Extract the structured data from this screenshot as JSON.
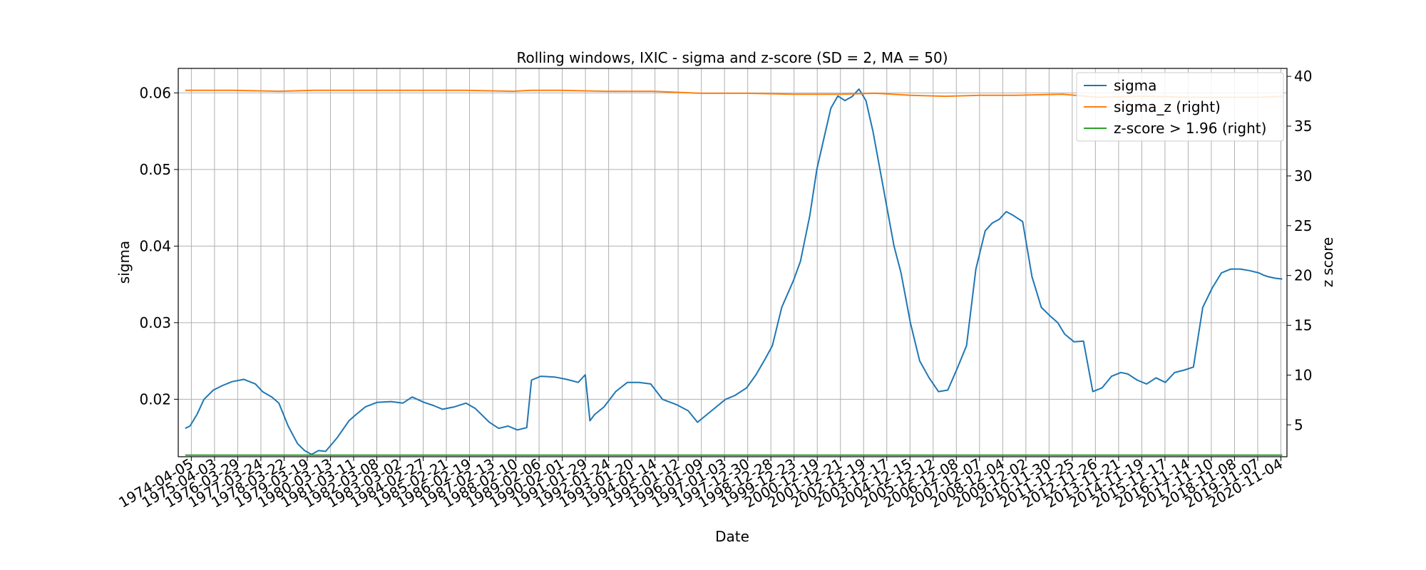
{
  "chart_data": {
    "type": "line",
    "title": "Rolling windows, IXIC - sigma and z-score (SD = 2, MA = 50)",
    "xlabel": "Date",
    "ylabel": "sigma",
    "ylabel_right": "z score",
    "grid": true,
    "legend_position": "top-right",
    "ylim": [
      0.0125,
      0.0632
    ],
    "ylim_right": [
      1.8,
      40.8
    ],
    "yticks": [
      "0.02",
      "0.03",
      "0.04",
      "0.05",
      "0.06"
    ],
    "yticks_right": [
      "5",
      "10",
      "15",
      "20",
      "25",
      "30",
      "35",
      "40"
    ],
    "x_tick_labels": [
      "1974-04-05",
      "1975-04-03",
      "1976-03-29",
      "1977-03-24",
      "1978-03-22",
      "1979-03-19",
      "1980-03-13",
      "1981-03-11",
      "1982-03-08",
      "1983-03-02",
      "1984-02-27",
      "1985-02-21",
      "1986-02-19",
      "1987-02-13",
      "1988-02-10",
      "1989-02-06",
      "1990-02-01",
      "1991-01-29",
      "1992-01-24",
      "1993-01-20",
      "1994-01-14",
      "1995-01-12",
      "1996-01-09",
      "1997-01-03",
      "1997-12-30",
      "1998-12-28",
      "1999-12-23",
      "2000-12-19",
      "2001-12-21",
      "2002-12-19",
      "2003-12-17",
      "2004-12-15",
      "2005-12-12",
      "2006-12-08",
      "2007-12-07",
      "2008-12-04",
      "2009-12-02",
      "2010-11-30",
      "2011-11-25",
      "2012-11-26",
      "2013-11-21",
      "2014-11-19",
      "2015-11-17",
      "2016-11-14",
      "2017-11-10",
      "2018-11-08",
      "2019-11-07",
      "2020-11-04"
    ],
    "series": [
      {
        "name": "sigma",
        "axis": "left",
        "color": "#1f77b4",
        "x": [
          1974.0,
          1974.2,
          1974.5,
          1974.8,
          1975.2,
          1975.6,
          1976.0,
          1976.5,
          1977.0,
          1977.3,
          1977.7,
          1978.0,
          1978.4,
          1978.8,
          1979.1,
          1979.4,
          1979.7,
          1980.0,
          1980.5,
          1981.0,
          1981.3,
          1981.7,
          1982.2,
          1982.8,
          1983.3,
          1983.7,
          1984.2,
          1984.6,
          1985.0,
          1985.5,
          1986.0,
          1986.4,
          1987.0,
          1987.4,
          1987.8,
          1988.2,
          1988.6,
          1988.8,
          1989.2,
          1989.8,
          1990.3,
          1990.8,
          1991.1,
          1991.3,
          1991.5,
          1991.9,
          1992.4,
          1992.9,
          1993.4,
          1993.9,
          1994.4,
          1995.0,
          1995.5,
          1995.9,
          1996.3,
          1996.7,
          1997.1,
          1997.5,
          1998.0,
          1998.4,
          1998.8,
          1999.1,
          1999.5,
          2000.0,
          2000.3,
          2000.7,
          2001.0,
          2001.3,
          2001.6,
          2001.9,
          2002.2,
          2002.5,
          2002.8,
          2003.1,
          2003.4,
          2003.7,
          2004.0,
          2004.3,
          2004.6,
          2005.0,
          2005.4,
          2005.8,
          2006.2,
          2006.6,
          2007.0,
          2007.4,
          2007.8,
          2008.2,
          2008.5,
          2008.8,
          2009.1,
          2009.4,
          2009.8,
          2010.2,
          2010.6,
          2011.0,
          2011.3,
          2011.6,
          2012.0,
          2012.4,
          2012.8,
          2013.2,
          2013.6,
          2014.0,
          2014.3,
          2014.7,
          2015.1,
          2015.5,
          2015.9,
          2016.3,
          2016.7,
          2017.1,
          2017.5,
          2017.9,
          2018.3,
          2018.7,
          2019.1,
          2019.5,
          2019.9,
          2020.1,
          2020.3,
          2020.6,
          2020.9
        ],
        "values": [
          0.0162,
          0.0165,
          0.018,
          0.02,
          0.0212,
          0.0218,
          0.0223,
          0.0226,
          0.022,
          0.021,
          0.0203,
          0.0195,
          0.0165,
          0.0142,
          0.0133,
          0.0128,
          0.0133,
          0.0132,
          0.015,
          0.0172,
          0.018,
          0.019,
          0.0196,
          0.0197,
          0.0195,
          0.0203,
          0.0196,
          0.0192,
          0.0187,
          0.019,
          0.0195,
          0.0188,
          0.017,
          0.0162,
          0.0165,
          0.016,
          0.0163,
          0.0225,
          0.023,
          0.0229,
          0.0226,
          0.0222,
          0.0232,
          0.0172,
          0.018,
          0.019,
          0.021,
          0.0222,
          0.0222,
          0.022,
          0.02,
          0.0193,
          0.0185,
          0.017,
          0.018,
          0.019,
          0.02,
          0.0205,
          0.0215,
          0.0232,
          0.0253,
          0.027,
          0.032,
          0.0355,
          0.038,
          0.044,
          0.05,
          0.054,
          0.058,
          0.0596,
          0.059,
          0.0595,
          0.0605,
          0.059,
          0.055,
          0.05,
          0.045,
          0.04,
          0.0365,
          0.03,
          0.025,
          0.0228,
          0.021,
          0.0212,
          0.024,
          0.027,
          0.037,
          0.042,
          0.043,
          0.0435,
          0.0445,
          0.044,
          0.0432,
          0.036,
          0.032,
          0.0308,
          0.03,
          0.0285,
          0.0275,
          0.0276,
          0.021,
          0.0215,
          0.023,
          0.0235,
          0.0233,
          0.0225,
          0.022,
          0.0228,
          0.0222,
          0.0235,
          0.0238,
          0.0242,
          0.032,
          0.0345,
          0.0365,
          0.037,
          0.037,
          0.0368,
          0.0365,
          0.0362,
          0.036,
          0.0358,
          0.0357
        ]
      },
      {
        "name": "sigma_z (right)",
        "axis": "right",
        "color": "#ff7f0e",
        "x": [
          1974.0,
          1976.0,
          1978.0,
          1979.5,
          1980.0,
          1982.0,
          1984.0,
          1986.0,
          1988.0,
          1988.8,
          1990.0,
          1992.0,
          1994.0,
          1996.0,
          1998.0,
          2000.0,
          2002.0,
          2003.5,
          2005.0,
          2006.5,
          2008.0,
          2009.5,
          2011.5,
          2013.0,
          2015.0,
          2016.8,
          2018.5,
          2020.0,
          2020.9
        ],
        "values": [
          38.6,
          38.6,
          38.5,
          38.6,
          38.6,
          38.6,
          38.6,
          38.6,
          38.5,
          38.6,
          38.6,
          38.5,
          38.5,
          38.3,
          38.3,
          38.2,
          38.2,
          38.3,
          38.1,
          38.0,
          38.1,
          38.1,
          38.2,
          37.9,
          38.0,
          37.9,
          37.9,
          37.9,
          38.0
        ]
      },
      {
        "name": "z-score > 1.96 (right)",
        "axis": "right",
        "color": "#2ca02c",
        "x": [
          1974.0,
          2020.9
        ],
        "values": [
          1.96,
          1.96
        ]
      }
    ]
  }
}
